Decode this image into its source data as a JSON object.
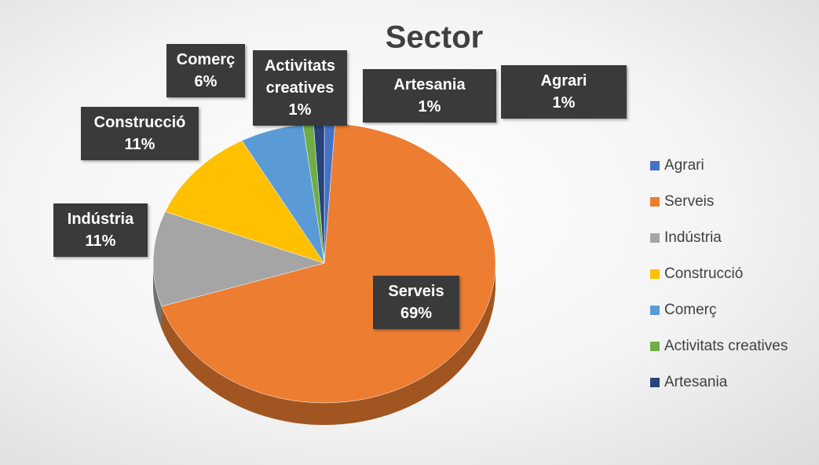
{
  "chart_data": {
    "type": "pie",
    "title": "Sector",
    "categories": [
      "Agrari",
      "Serveis",
      "Indústria",
      "Construcció",
      "Comerç",
      "Activitats creatives",
      "Artesania"
    ],
    "values": [
      1,
      69,
      11,
      11,
      6,
      1,
      1
    ],
    "value_labels": [
      "1%",
      "69%",
      "11%",
      "11%",
      "6%",
      "1%",
      "1%"
    ],
    "colors": [
      "#4472c4",
      "#ed7d31",
      "#a5a5a5",
      "#ffc000",
      "#5b9bd5",
      "#70ad47",
      "#264478"
    ],
    "legend": "right"
  }
}
